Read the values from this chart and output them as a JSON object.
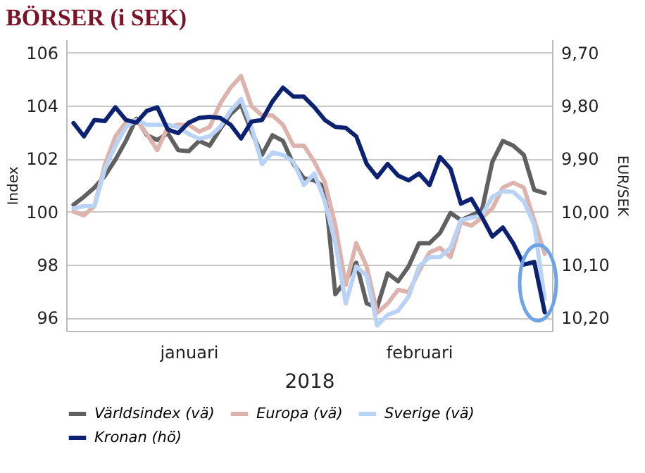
{
  "chart_data": {
    "type": "line",
    "title": "BÖRSER (i SEK)",
    "xlabel": "2018",
    "ylabel": "Index",
    "y2label": "EUR/SEK",
    "categories": [
      null,
      null,
      null,
      null,
      null,
      null,
      null,
      null,
      null,
      null,
      null,
      "januari",
      null,
      null,
      null,
      null,
      null,
      null,
      null,
      null,
      null,
      null,
      null,
      null,
      null,
      null,
      null,
      null,
      null,
      null,
      null,
      null,
      null,
      "februari",
      null,
      null,
      null,
      null,
      null,
      null,
      null,
      null,
      null,
      null,
      null,
      null
    ],
    "series": [
      {
        "name": "Världsindex (vä)",
        "color": "#606060",
        "values": [
          100.26,
          100.56,
          100.91,
          101.35,
          101.96,
          102.67,
          103.51,
          102.89,
          102.7,
          102.96,
          102.32,
          102.28,
          102.67,
          102.49,
          103.11,
          103.68,
          104.04,
          103.02,
          102.14,
          102.88,
          102.67,
          101.8,
          101.26,
          101.18,
          100.91,
          96.88,
          97.4,
          98.07,
          96.53,
          96.39,
          97.67,
          97.37,
          97.93,
          98.81,
          98.81,
          99.19,
          99.95,
          99.68,
          99.86,
          100.05,
          101.88,
          102.67,
          102.49,
          102.14,
          100.82,
          100.7
        ]
      },
      {
        "name": "Europa (vä)",
        "color": "#dcb4ad",
        "values": [
          100.0,
          99.86,
          100.21,
          101.79,
          102.84,
          103.37,
          103.46,
          102.93,
          102.32,
          103.19,
          103.28,
          103.28,
          103.02,
          103.19,
          104.07,
          104.68,
          105.12,
          103.98,
          103.63,
          103.63,
          103.28,
          102.49,
          102.49,
          101.88,
          101.1,
          99.5,
          97.23,
          98.81,
          97.93,
          96.18,
          96.53,
          97.05,
          96.96,
          97.75,
          98.46,
          98.63,
          98.28,
          99.6,
          99.47,
          99.77,
          100.12,
          100.91,
          101.09,
          100.91,
          99.68,
          98.4
        ]
      },
      {
        "name": "Sverige (vä)",
        "color": "#b9d3f7",
        "values": [
          100.12,
          100.21,
          100.21,
          101.61,
          102.49,
          103.19,
          103.46,
          103.28,
          103.28,
          103.28,
          103.19,
          102.93,
          102.75,
          102.84,
          103.19,
          103.81,
          104.25,
          103.19,
          101.79,
          102.23,
          102.14,
          101.88,
          101.0,
          101.44,
          100.39,
          98.81,
          96.53,
          97.93,
          97.58,
          95.7,
          96.1,
          96.26,
          96.79,
          97.93,
          98.28,
          98.28,
          98.63,
          99.68,
          99.77,
          99.86,
          100.56,
          100.77,
          100.74,
          100.39,
          99.5,
          96.7
        ]
      },
      {
        "name": "Kronan (hö)",
        "color": "#0c2170",
        "axis": "y2",
        "values": [
          9.833,
          9.858,
          9.827,
          9.829,
          9.803,
          9.827,
          9.832,
          9.81,
          9.803,
          9.845,
          9.852,
          9.832,
          9.823,
          9.821,
          9.823,
          9.836,
          9.862,
          9.83,
          9.827,
          9.792,
          9.766,
          9.783,
          9.783,
          9.803,
          9.827,
          9.84,
          9.842,
          9.858,
          9.91,
          9.935,
          9.91,
          9.932,
          9.941,
          9.928,
          9.95,
          9.897,
          9.919,
          9.985,
          9.976,
          10.01,
          10.047,
          10.03,
          10.06,
          10.1,
          10.095,
          10.19
        ]
      }
    ],
    "ylim": [
      95.5,
      106.5
    ],
    "yticks": [
      96,
      98,
      100,
      102,
      104,
      106
    ],
    "y2lim": [
      10.225,
      9.675
    ],
    "y2ticks": [
      {
        "value": 9.7,
        "label": "9,70"
      },
      {
        "value": 9.8,
        "label": "9,80"
      },
      {
        "value": 9.9,
        "label": "9,90"
      },
      {
        "value": 10,
        "label": "10,00"
      },
      {
        "value": 10.1,
        "label": "10,10"
      },
      {
        "value": 10.2,
        "label": "10,20"
      }
    ],
    "grid": "y",
    "legend": "bottom"
  }
}
